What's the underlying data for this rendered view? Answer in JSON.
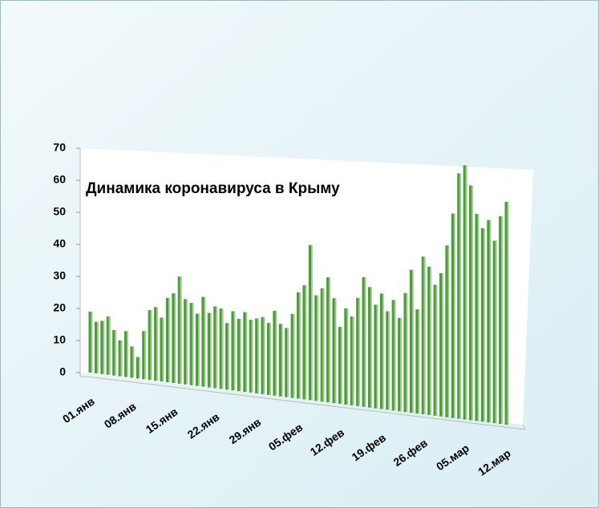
{
  "chart_data": {
    "type": "bar3d",
    "title": "Динамика  коронавируса в Крыму",
    "categories": [
      "01.янв",
      null,
      null,
      null,
      null,
      null,
      null,
      "08.янв",
      null,
      null,
      null,
      null,
      null,
      null,
      "15.янв",
      null,
      null,
      null,
      null,
      null,
      null,
      "22.янв",
      null,
      null,
      null,
      null,
      null,
      null,
      "29.янв",
      null,
      null,
      null,
      null,
      null,
      null,
      "05.фев",
      null,
      null,
      null,
      null,
      null,
      null,
      "12.фев",
      null,
      null,
      null,
      null,
      null,
      null,
      "19.фев",
      null,
      null,
      null,
      null,
      null,
      null,
      "26.фев",
      null,
      null,
      null,
      null,
      null,
      null,
      "05.мар",
      null,
      null,
      null,
      null,
      null,
      null,
      "12.мар"
    ],
    "values": [
      19,
      16,
      16.5,
      18,
      14,
      11,
      14,
      9.5,
      6.5,
      14.5,
      21,
      22,
      19,
      25,
      26.5,
      31.5,
      25,
      24,
      21,
      26,
      21.5,
      23.5,
      23,
      19,
      22.5,
      20.5,
      22.5,
      20.5,
      21,
      21.5,
      20,
      23.5,
      20,
      19,
      23,
      29,
      31,
      42,
      28.5,
      30.5,
      33.5,
      28,
      20.5,
      25.5,
      23.5,
      28.5,
      34,
      31.5,
      27,
      30,
      25.5,
      28.5,
      24,
      30.5,
      36.5,
      26.5,
      40,
      37.5,
      33,
      36,
      43,
      51,
      61,
      63,
      58,
      51,
      47.5,
      49.5,
      44.5,
      50.5,
      54
    ],
    "color": "#4f9a3f",
    "ylim": [
      0,
      70
    ],
    "yticks": [
      0,
      10,
      20,
      30,
      40,
      50,
      60,
      70
    ],
    "grid": false
  }
}
